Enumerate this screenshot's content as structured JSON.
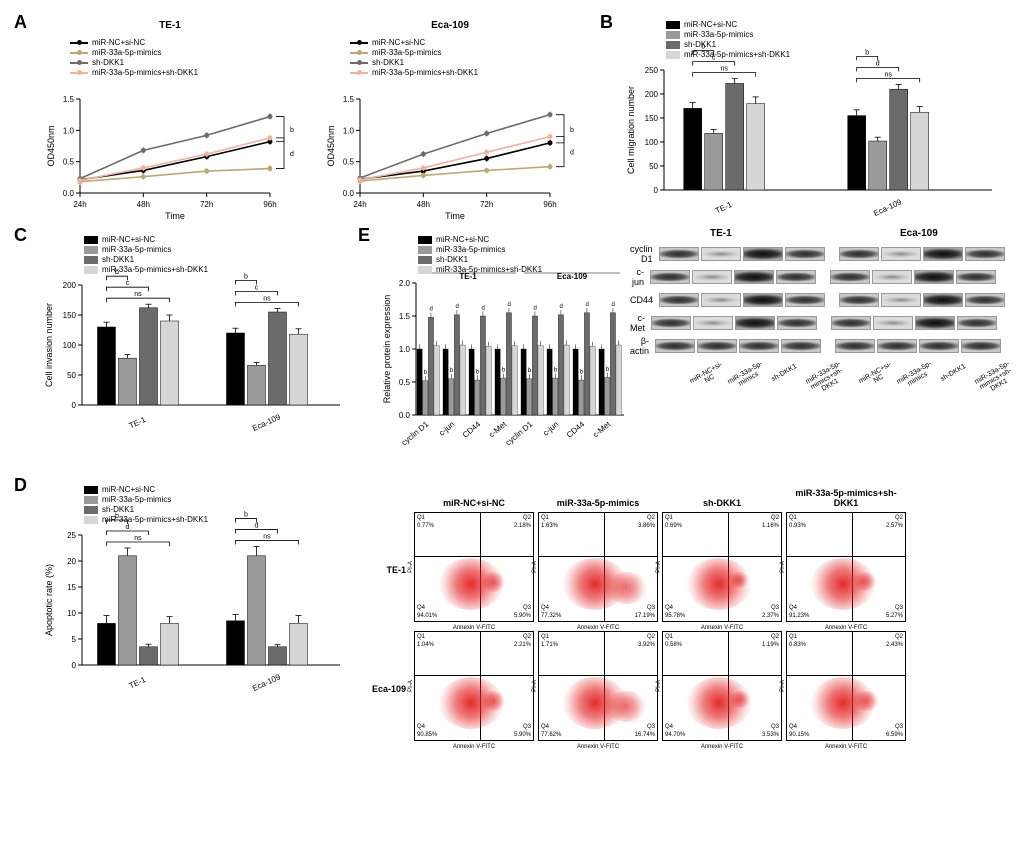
{
  "palette": {
    "black": "#000000",
    "tan": "#bda86f",
    "darkgray": "#6b6b6b",
    "lightpink": "#f1b0a0",
    "lightgray": "#d6d6d6",
    "background": "#ffffff"
  },
  "conditions": [
    "miR-NC+si-NC",
    "miR-33a-5p-mimics",
    "sh-DKK1",
    "miR-33a-5p-mimics+sh-DKK1"
  ],
  "cell_lines": [
    "TE-1",
    "Eca-109"
  ],
  "panelA": {
    "label": "A",
    "charts": [
      {
        "title": "TE-1",
        "x": [
          "24h",
          "48h",
          "72h",
          "96h"
        ],
        "ylabel": "OD450nm",
        "xlabel": "Time",
        "ylim": [
          0,
          1.5
        ],
        "yticks": [
          0,
          0.5,
          1.0,
          1.5
        ],
        "series": [
          {
            "name": "miR-NC+si-NC",
            "color": "#000000",
            "y": [
              0.21,
              0.36,
              0.58,
              0.82
            ]
          },
          {
            "name": "miR-33a-5p-mimics",
            "color": "#bda86f",
            "y": [
              0.18,
              0.26,
              0.35,
              0.39
            ]
          },
          {
            "name": "sh-DKK1",
            "color": "#6b6b6b",
            "y": [
              0.23,
              0.68,
              0.92,
              1.22
            ]
          },
          {
            "name": "miR-33a-5p-mimics+sh-DKK1",
            "color": "#f1b0a0",
            "y": [
              0.2,
              0.4,
              0.62,
              0.88
            ]
          }
        ],
        "sig": [
          {
            "top": "b"
          },
          {
            "bottom": "d"
          }
        ]
      },
      {
        "title": "Eca-109",
        "x": [
          "24h",
          "48h",
          "72h",
          "96h"
        ],
        "ylabel": "OD450nm",
        "xlabel": "Time",
        "ylim": [
          0,
          1.5
        ],
        "yticks": [
          0,
          0.5,
          1.0,
          1.5
        ],
        "series": [
          {
            "name": "miR-NC+si-NC",
            "color": "#000000",
            "y": [
              0.22,
              0.35,
              0.55,
              0.8
            ]
          },
          {
            "name": "miR-33a-5p-mimics",
            "color": "#bda86f",
            "y": [
              0.19,
              0.28,
              0.36,
              0.42
            ]
          },
          {
            "name": "sh-DKK1",
            "color": "#6b6b6b",
            "y": [
              0.24,
              0.62,
              0.95,
              1.25
            ]
          },
          {
            "name": "miR-33a-5p-mimics+sh-DKK1",
            "color": "#f1b0a0",
            "y": [
              0.21,
              0.4,
              0.65,
              0.9
            ]
          }
        ],
        "sig": [
          {
            "top": "b"
          },
          {
            "bottom": "d"
          }
        ]
      }
    ]
  },
  "panelB": {
    "label": "B",
    "ylabel": "Cell migration number",
    "ylim": [
      0,
      250
    ],
    "yticks": [
      0,
      50,
      100,
      150,
      200,
      250
    ],
    "groups": [
      "TE-1",
      "Eca-109"
    ],
    "colors": [
      "#000000",
      "#9a9a9a",
      "#6b6b6b",
      "#d6d6d6"
    ],
    "values": {
      "TE-1": [
        170,
        118,
        222,
        180
      ],
      "Eca-109": [
        155,
        102,
        210,
        162
      ]
    },
    "err": {
      "TE-1": [
        12,
        8,
        10,
        14
      ],
      "Eca-109": [
        12,
        8,
        10,
        12
      ]
    },
    "sigs": {
      "TE-1": [
        [
          "b",
          0,
          1
        ],
        [
          "c",
          0,
          2
        ],
        [
          "ns",
          0,
          3
        ]
      ],
      "Eca-109": [
        [
          "b",
          0,
          1
        ],
        [
          "d",
          0,
          2
        ],
        [
          "ns",
          0,
          3
        ]
      ]
    }
  },
  "panelC": {
    "label": "C",
    "ylabel": "Cell invasion number",
    "ylim": [
      0,
      200
    ],
    "yticks": [
      0,
      50,
      100,
      150,
      200
    ],
    "groups": [
      "TE-1",
      "Eca-109"
    ],
    "colors": [
      "#000000",
      "#9a9a9a",
      "#6b6b6b",
      "#d6d6d6"
    ],
    "values": {
      "TE-1": [
        130,
        78,
        162,
        140
      ],
      "Eca-109": [
        120,
        66,
        155,
        118
      ]
    },
    "err": {
      "TE-1": [
        8,
        6,
        6,
        10
      ],
      "Eca-109": [
        8,
        5,
        6,
        9
      ]
    },
    "sigs": {
      "TE-1": [
        [
          "b",
          0,
          1
        ],
        [
          "c",
          0,
          2
        ],
        [
          "ns",
          0,
          3
        ]
      ],
      "Eca-109": [
        [
          "b",
          0,
          1
        ],
        [
          "c",
          0,
          2
        ],
        [
          "ns",
          0,
          3
        ]
      ]
    }
  },
  "panelD": {
    "label": "D",
    "ylabel": "Apoptotic rate (%)",
    "ylim": [
      0,
      25
    ],
    "yticks": [
      0,
      5,
      10,
      15,
      20,
      25
    ],
    "groups": [
      "TE-1",
      "Eca-109"
    ],
    "colors": [
      "#000000",
      "#9a9a9a",
      "#6b6b6b",
      "#d6d6d6"
    ],
    "values": {
      "TE-1": [
        8,
        21,
        3.5,
        8
      ],
      "Eca-109": [
        8.5,
        21,
        3.5,
        8
      ]
    },
    "err": {
      "TE-1": [
        1.5,
        1.5,
        0.5,
        1.3
      ],
      "Eca-109": [
        1.2,
        1.8,
        0.4,
        1.5
      ]
    },
    "sigs": {
      "TE-1": [
        [
          "b",
          0,
          1
        ],
        [
          "d",
          0,
          2
        ],
        [
          "ns",
          0,
          3
        ]
      ],
      "Eca-109": [
        [
          "b",
          0,
          1
        ],
        [
          "d",
          0,
          2
        ],
        [
          "ns",
          0,
          3
        ]
      ]
    }
  },
  "panelE": {
    "label": "E",
    "ylabel": "Relative protein expression",
    "ylim": [
      0,
      2.0
    ],
    "yticks": [
      0,
      0.5,
      1.0,
      1.5,
      2.0
    ],
    "proteins": [
      "cyclin D1",
      "c-jun",
      "CD44",
      "c-Met"
    ],
    "groups": [
      "TE-1",
      "Eca-109"
    ],
    "colors": [
      "#000000",
      "#9a9a9a",
      "#6b6b6b",
      "#d6d6d6"
    ],
    "values": {
      "TE-1": {
        "cyclin D1": [
          1.0,
          0.52,
          1.48,
          1.05
        ],
        "c-jun": [
          1.0,
          0.55,
          1.52,
          1.06
        ],
        "CD44": [
          1.0,
          0.53,
          1.5,
          1.04
        ],
        "c-Met": [
          1.0,
          0.56,
          1.55,
          1.05
        ]
      },
      "Eca-109": {
        "cyclin D1": [
          1.0,
          0.55,
          1.5,
          1.05
        ],
        "c-jun": [
          1.0,
          0.56,
          1.52,
          1.06
        ],
        "CD44": [
          1.0,
          0.53,
          1.55,
          1.04
        ],
        "c-Met": [
          1.0,
          0.57,
          1.55,
          1.06
        ]
      }
    },
    "sigs_per_bar": [
      "",
      "b",
      "d",
      ""
    ],
    "blot_proteins": [
      "cyclin D1",
      "c-jun",
      "CD44",
      "c-Met",
      "β-actin"
    ],
    "blot_intensity": {
      "TE-1": [
        [
          "m",
          "l",
          "h",
          "m"
        ],
        [
          "m",
          "l",
          "h",
          "m"
        ],
        [
          "m",
          "l",
          "h",
          "m"
        ],
        [
          "m",
          "l",
          "h",
          "m"
        ],
        [
          "m",
          "m",
          "m",
          "m"
        ]
      ],
      "Eca-109": [
        [
          "m",
          "l",
          "h",
          "m"
        ],
        [
          "m",
          "l",
          "h",
          "m"
        ],
        [
          "m",
          "l",
          "h",
          "m"
        ],
        [
          "m",
          "l",
          "h",
          "m"
        ],
        [
          "m",
          "m",
          "m",
          "m"
        ]
      ]
    },
    "lane_labels": [
      "miR-NC+si-NC",
      "miR-33a-5p-mimics",
      "sh-DKK1",
      "miR-33a-5p-mimics+sh-DKK1"
    ]
  },
  "facs": {
    "col_headers": [
      "miR-NC+si-NC",
      "miR-33a-5p-mimics",
      "sh-DKK1",
      "miR-33a-5p-mimics+sh-DKK1"
    ],
    "row_headers": [
      "TE-1",
      "Eca-109"
    ],
    "xlabel": "Annexin V-FITC",
    "ylabel": "PI-A",
    "q": {
      "TE-1": [
        {
          "q1": "0.77%",
          "q2": "2.18%",
          "q3": "94.01%",
          "q4": "5.90%"
        },
        {
          "q1": "1.63%",
          "q2": "3.86%",
          "q3": "77.32%",
          "q4": "17.19%"
        },
        {
          "q1": "0.69%",
          "q2": "1.16%",
          "q3": "95.78%",
          "q4": "2.37%"
        },
        {
          "q1": "0.93%",
          "q2": "2.57%",
          "q3": "91.23%",
          "q4": "5.27%"
        }
      ],
      "Eca-109": [
        {
          "q1": "1.04%",
          "q2": "2.21%",
          "q3": "90.85%",
          "q4": "5.90%"
        },
        {
          "q1": "1.71%",
          "q2": "3.92%",
          "q3": "77.62%",
          "q4": "16.74%"
        },
        {
          "q1": "0.58%",
          "q2": "1.19%",
          "q3": "94.70%",
          "q4": "3.53%"
        },
        {
          "q1": "0.83%",
          "q2": "2.43%",
          "q3": "90.15%",
          "q4": "6.59%"
        }
      ]
    }
  }
}
